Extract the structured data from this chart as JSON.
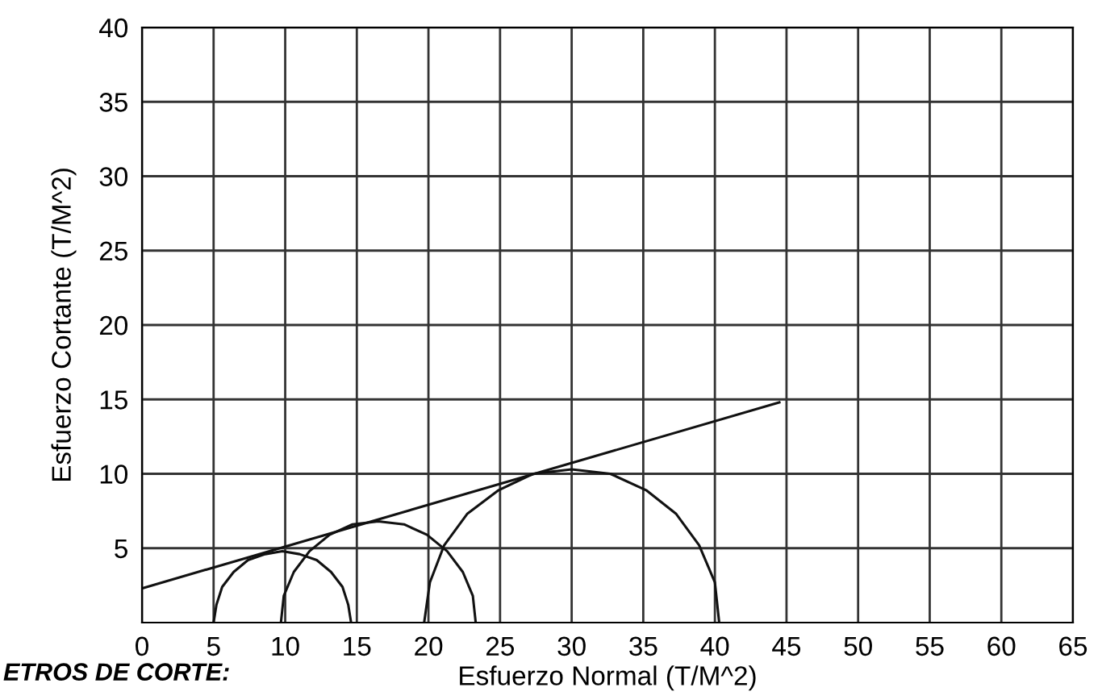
{
  "chart_data": {
    "type": "line",
    "xlabel": "Esfuerzo Normal (T/M^2)",
    "ylabel": "Esfuerzo Cortante (T/M^2)",
    "annotations": [
      "ETROS DE CORTE:"
    ],
    "xlim": [
      0,
      65
    ],
    "ylim": [
      0,
      40
    ],
    "xticks": [
      0,
      5,
      10,
      15,
      20,
      25,
      30,
      35,
      40,
      45,
      50,
      55,
      60,
      65
    ],
    "yticks": [
      5,
      10,
      15,
      20,
      25,
      30,
      35,
      40
    ],
    "grid": true,
    "marker": "none",
    "line_style": "solid",
    "series": [
      {
        "color": "#111111",
        "x": [
          0,
          44.5
        ],
        "values": [
          2.3,
          14.8
        ]
      },
      {
        "color": "#111111",
        "x": [
          14.6,
          14.4,
          14.0,
          13.2,
          12.2,
          11.0,
          9.8,
          8.6,
          7.4,
          6.4,
          5.6,
          5.2,
          5.0
        ],
        "values": [
          0,
          1.2,
          2.4,
          3.4,
          4.2,
          4.6,
          4.8,
          4.6,
          4.2,
          3.4,
          2.4,
          1.2,
          0
        ]
      },
      {
        "color": "#111111",
        "x": [
          23.3,
          23.1,
          22.4,
          21.3,
          19.9,
          18.3,
          16.5,
          14.7,
          13.1,
          11.7,
          10.6,
          9.9,
          9.7
        ],
        "values": [
          0,
          1.8,
          3.4,
          4.8,
          5.9,
          6.6,
          6.8,
          6.6,
          5.9,
          4.8,
          3.4,
          1.8,
          0
        ]
      },
      {
        "color": "#111111",
        "x": [
          40.3,
          40.0,
          38.9,
          37.3,
          35.2,
          32.7,
          30.0,
          27.3,
          24.9,
          22.7,
          21.1,
          20.1,
          19.7
        ],
        "values": [
          0,
          2.7,
          5.2,
          7.3,
          8.9,
          10.0,
          10.3,
          10.0,
          8.9,
          7.3,
          5.2,
          2.7,
          0
        ]
      }
    ]
  }
}
